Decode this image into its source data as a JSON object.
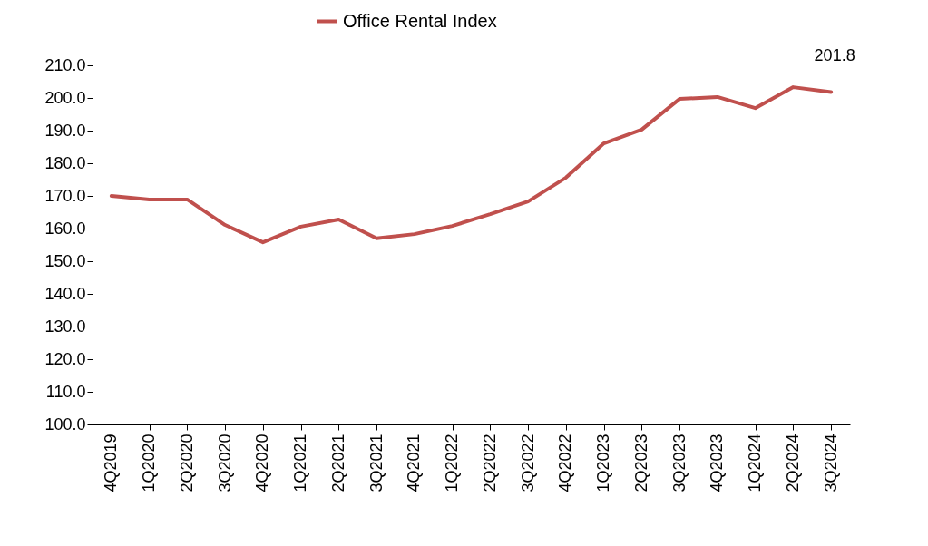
{
  "chart_data": {
    "type": "line",
    "categories": [
      "4Q2019",
      "1Q2020",
      "2Q2020",
      "3Q2020",
      "4Q2020",
      "1Q2021",
      "2Q2021",
      "3Q2021",
      "4Q2021",
      "1Q2022",
      "2Q2022",
      "3Q2022",
      "4Q2022",
      "1Q2023",
      "2Q2023",
      "3Q2023",
      "4Q2023",
      "1Q2024",
      "2Q2024",
      "3Q2024"
    ],
    "series": [
      {
        "name": "Office Rental Index",
        "color": "#c0504d",
        "values": [
          170.0,
          168.9,
          168.9,
          161.1,
          155.8,
          160.6,
          162.8,
          157.0,
          158.3,
          160.8,
          164.4,
          168.3,
          175.6,
          186.1,
          190.3,
          199.7,
          200.3,
          196.9,
          203.3,
          201.8
        ],
        "value_labels": [
          null,
          null,
          null,
          null,
          null,
          null,
          null,
          null,
          null,
          null,
          null,
          null,
          null,
          null,
          null,
          null,
          null,
          null,
          null,
          "201.8"
        ]
      }
    ],
    "ylim": [
      100,
      210
    ],
    "yticks": [
      {
        "value": 100,
        "label": "100.0"
      },
      {
        "value": 110,
        "label": "110.0"
      },
      {
        "value": 120,
        "label": "120.0"
      },
      {
        "value": 130,
        "label": "130.0"
      },
      {
        "value": 140,
        "label": "140.0"
      },
      {
        "value": 150,
        "label": "150.0"
      },
      {
        "value": 160,
        "label": "160.0"
      },
      {
        "value": 170,
        "label": "170.0"
      },
      {
        "value": 180,
        "label": "180.0"
      },
      {
        "value": 190,
        "label": "190.0"
      },
      {
        "value": 200,
        "label": "200.0"
      },
      {
        "value": 210,
        "label": "210.0"
      }
    ],
    "grid": false,
    "legend": "top",
    "marker": "none",
    "line_style": "solid"
  }
}
